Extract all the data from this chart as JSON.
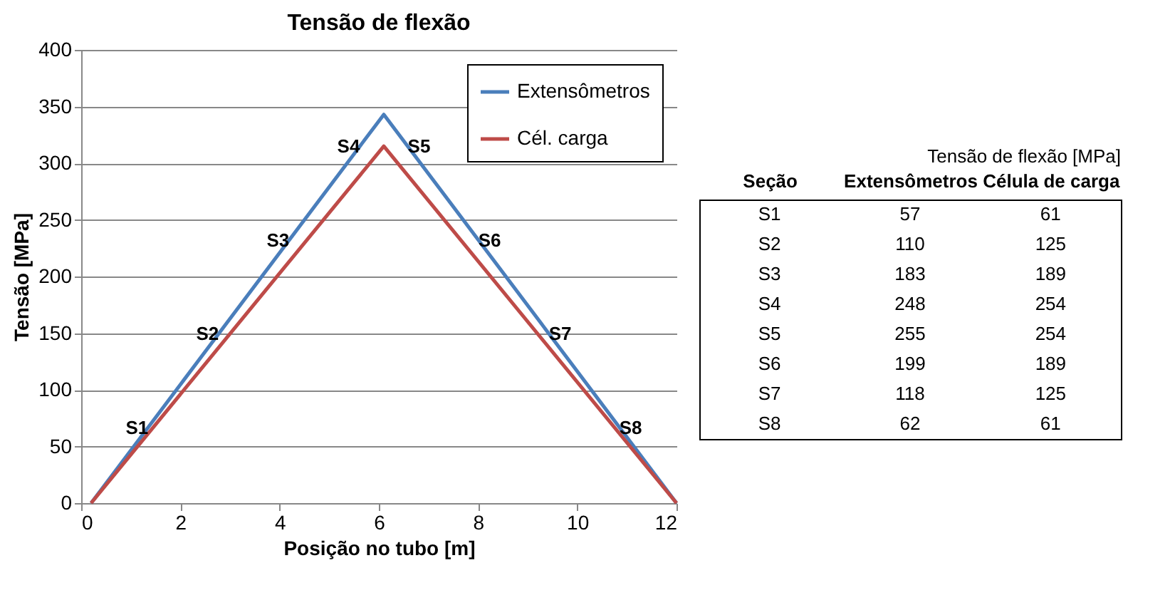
{
  "chart_data": [
    {
      "type": "line",
      "title": "Tensão de flexão",
      "xlabel": "Posição no tubo [m]",
      "ylabel": "Tensão [MPa]",
      "series": [
        {
          "name": "Extensômetros",
          "color": "#4a7ebb",
          "x": [
            0.2,
            6.1,
            12
          ],
          "values": [
            0,
            343,
            0
          ]
        },
        {
          "name": "Cél. carga",
          "color": "#be4b48",
          "x": [
            0.2,
            6.1,
            12
          ],
          "values": [
            0,
            315,
            0
          ]
        }
      ],
      "xlim": [
        0,
        12
      ],
      "xticks": [
        0,
        2,
        4,
        6,
        8,
        10,
        12
      ],
      "ylim": [
        0,
        400
      ],
      "yticks": [
        0,
        50,
        100,
        150,
        200,
        250,
        300,
        350,
        400
      ],
      "grid": "y",
      "legend": "top right",
      "annotations": [
        "S1",
        "S2",
        "S3",
        "S4",
        "S5",
        "S6",
        "S7",
        "S8"
      ]
    },
    {
      "type": "other",
      "title": "Tensão de flexão [MPa]",
      "xlabel": "Seção",
      "categories": [
        "S1",
        "S2",
        "S3",
        "S4",
        "S5",
        "S6",
        "S7",
        "S8"
      ],
      "series": [
        {
          "name": "Extensômetros",
          "values": [
            57,
            110,
            183,
            248,
            255,
            199,
            118,
            62
          ]
        },
        {
          "name": "Célula de carga",
          "values": [
            61,
            125,
            189,
            254,
            254,
            189,
            125,
            61
          ]
        }
      ],
      "data_labels": true
    }
  ]
}
